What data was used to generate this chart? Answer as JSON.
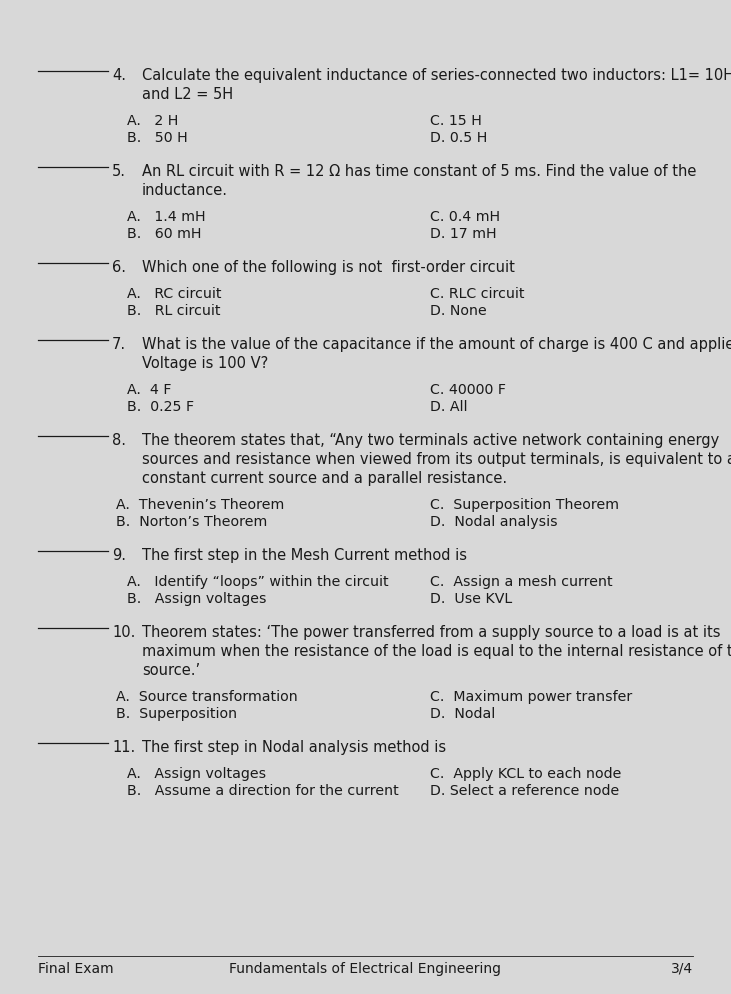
{
  "bg_color": "#d8d8d8",
  "text_color": "#1a1a1a",
  "title_footer": "Final Exam",
  "subtitle_footer": "Fundamentals of Electrical Engineering",
  "page_number": "3/4",
  "questions": [
    {
      "number": "4.",
      "text_lines": [
        "Calculate the equivalent inductance of series-connected two inductors: L1= 10H",
        "and L2 = 5H"
      ],
      "choices_left": [
        "A.   2 H",
        "B.   50 H"
      ],
      "choices_right": [
        "C. 15 H",
        "D. 0.5 H"
      ],
      "choice_indent": 0.175
    },
    {
      "number": "5.",
      "text_lines": [
        "An RL circuit with R = 12 Ω has time constant of 5 ms. Find the value of the",
        "inductance."
      ],
      "choices_left": [
        "A.   1.4 mH",
        "B.   60 mH"
      ],
      "choices_right": [
        "C. 0.4 mH",
        "D. 17 mH"
      ],
      "choice_indent": 0.175
    },
    {
      "number": "6.",
      "text_lines": [
        "Which one of the following is not  first-order circuit"
      ],
      "choices_left": [
        "A.   RC circuit",
        "B.   RL circuit"
      ],
      "choices_right": [
        "C. RLC circuit",
        "D. None"
      ],
      "choice_indent": 0.175
    },
    {
      "number": "7.",
      "text_lines": [
        "What is the value of the capacitance if the amount of charge is 400 C and applied",
        "Voltage is 100 V?"
      ],
      "choices_left": [
        "A.  4 F",
        "B.  0.25 F"
      ],
      "choices_right": [
        "C. 40000 F",
        "D. All"
      ],
      "choice_indent": 0.175
    },
    {
      "number": "8.",
      "text_lines": [
        "The theorem states that, “Any two terminals active network containing energy",
        "sources and resistance when viewed from its output terminals, is equivalent to a",
        "constant current source and a parallel resistance."
      ],
      "choices_left": [
        "A.  Thevenin’s Theorem",
        "B.  Norton’s Theorem"
      ],
      "choices_right": [
        "C.  Superposition Theorem",
        "D.  Nodal analysis"
      ],
      "choice_indent": 0.16
    },
    {
      "number": "9.",
      "text_lines": [
        "The first step in the Mesh Current method is"
      ],
      "choices_left": [
        "A.   Identify “loops” within the circuit",
        "B.   Assign voltages"
      ],
      "choices_right": [
        "C.  Assign a mesh current",
        "D.  Use KVL"
      ],
      "choice_indent": 0.175
    },
    {
      "number": "10.",
      "text_lines": [
        "Theorem states: ‘The power transferred from a supply source to a load is at its",
        "maximum when the resistance of the load is equal to the internal resistance of the",
        "source.’"
      ],
      "choices_left": [
        "A.  Source transformation",
        "B.  Superposition"
      ],
      "choices_right": [
        "C.  Maximum power transfer",
        "D.  Nodal"
      ],
      "choice_indent": 0.16
    },
    {
      "number": "11.",
      "text_lines": [
        "The first step in Nodal analysis method is"
      ],
      "choices_left": [
        "A.   Assign voltages",
        "B.   Assume a direction for the current"
      ],
      "choices_right": [
        "C.  Apply KCL to each node",
        "D. Select a reference node"
      ],
      "choice_indent": 0.175
    }
  ]
}
